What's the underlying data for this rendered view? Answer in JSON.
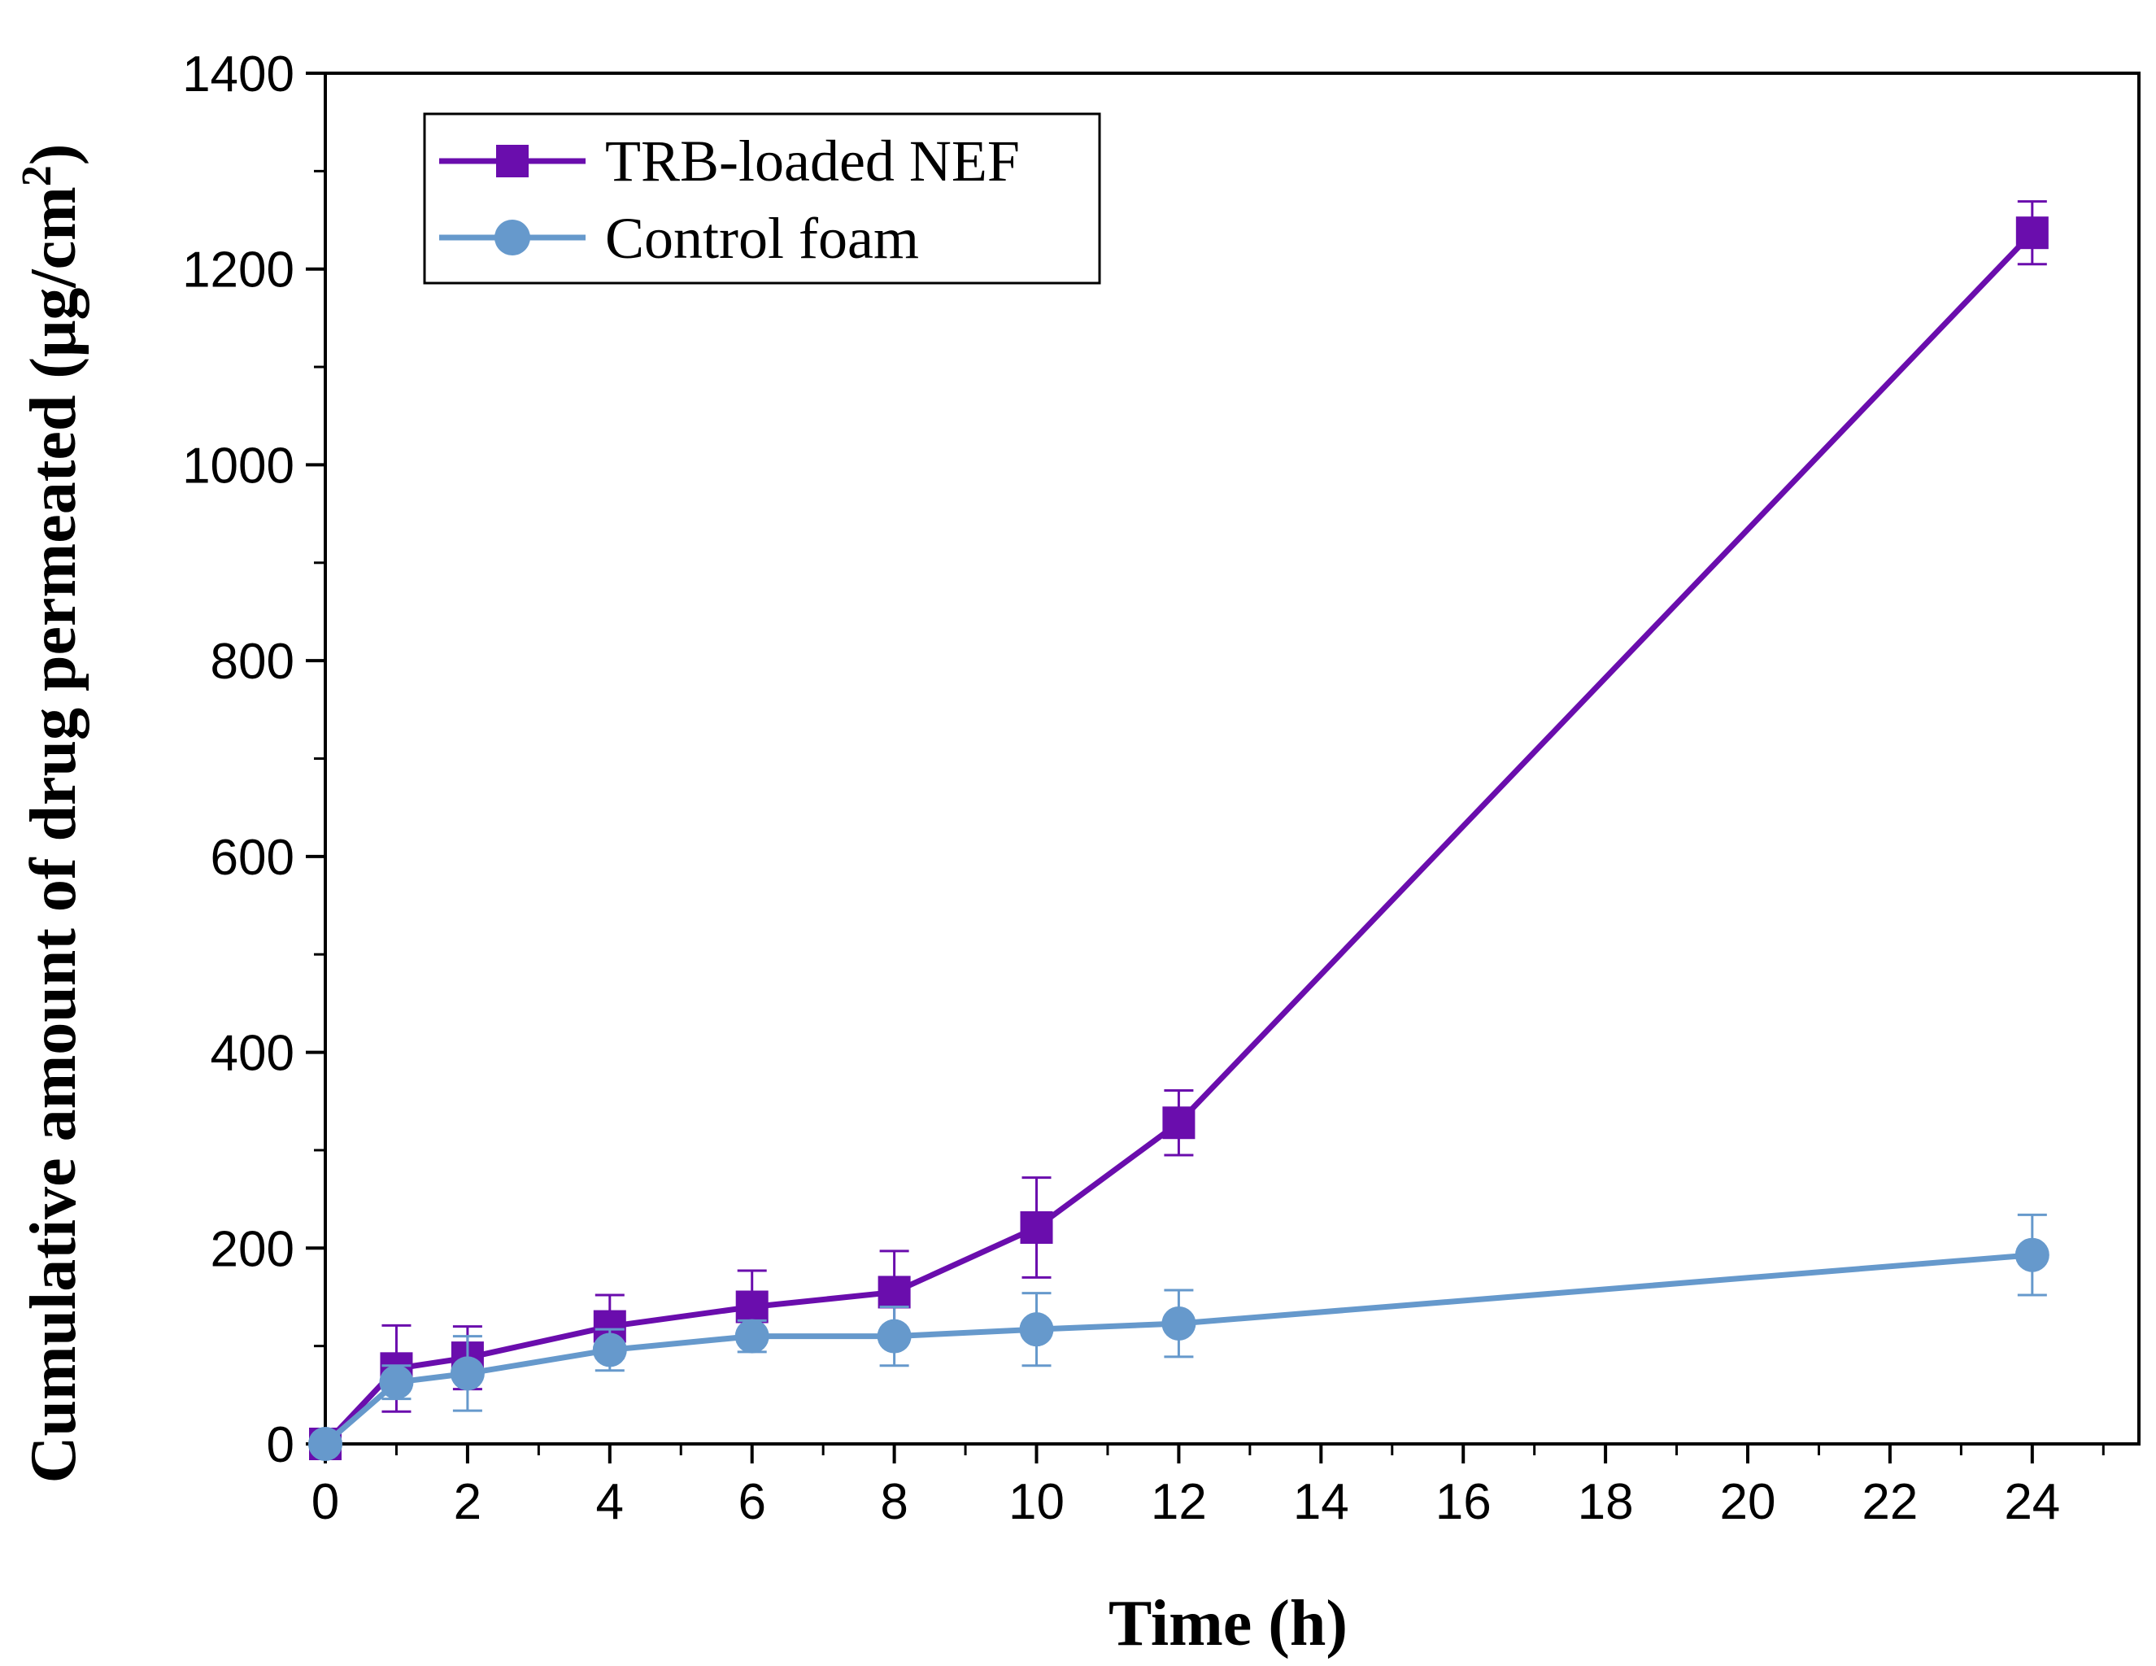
{
  "chart_data": {
    "type": "line",
    "title": "",
    "xlabel": "Time (h)",
    "ylabel_main": "Cumulative amount of drug permeated (μg/cm",
    "ylabel_sup": "2",
    "ylabel_close": ")",
    "xlim": [
      0,
      25.5
    ],
    "ylim": [
      0,
      1400
    ],
    "x_ticks": [
      0,
      2,
      4,
      6,
      8,
      10,
      12,
      14,
      16,
      18,
      20,
      22,
      24
    ],
    "y_ticks": [
      0,
      200,
      400,
      600,
      800,
      1000,
      1200,
      1400
    ],
    "legend_position": "top-left",
    "series": [
      {
        "name": "TRB-loaded NEF",
        "color": "#6a0dad",
        "marker": "square",
        "x": [
          0,
          1,
          2,
          4,
          6,
          8,
          10,
          12,
          24
        ],
        "y": [
          0,
          77,
          88,
          120,
          140,
          155,
          221,
          328,
          1237
        ],
        "err": [
          0,
          44,
          32,
          32,
          37,
          42,
          51,
          33,
          32
        ]
      },
      {
        "name": "Control foam",
        "color": "#6699cc",
        "marker": "circle",
        "x": [
          0,
          1,
          2,
          4,
          6,
          8,
          10,
          12,
          24
        ],
        "y": [
          0,
          63,
          72,
          96,
          110,
          110,
          117,
          123,
          193
        ],
        "err": [
          0,
          17,
          38,
          21,
          16,
          30,
          37,
          34,
          41
        ]
      }
    ]
  }
}
